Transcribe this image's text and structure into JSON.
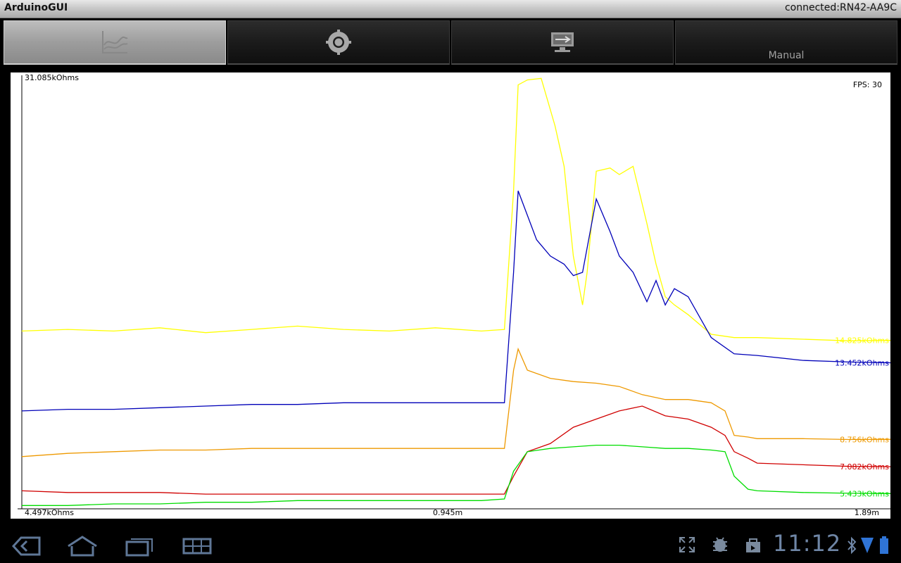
{
  "titlebar": {
    "app_title": "ArduinoGUI",
    "connection": "connected:RN42-AA9C"
  },
  "tabs": [
    {
      "name": "graph",
      "icon": "graph-icon",
      "label": "",
      "active": true
    },
    {
      "name": "settings",
      "icon": "gear-icon",
      "label": "",
      "active": false
    },
    {
      "name": "connection",
      "icon": "connection-icon",
      "label": "",
      "active": false
    },
    {
      "name": "manual",
      "icon": "",
      "label": "Manual",
      "active": false
    }
  ],
  "plot": {
    "y_max_label": "31.085kOhms",
    "y_min_label": "4.497kOhms",
    "fps_label": "FPS: 30",
    "x_mid_label": "0.945m",
    "x_end_label": "1.89m"
  },
  "chart_data": {
    "type": "line",
    "x_unit": "m",
    "x_range": [
      0,
      1.89
    ],
    "y_unit": "kOhms",
    "y_range": [
      4.497,
      31.085
    ],
    "grid": false,
    "series": [
      {
        "color": "#ffff00",
        "current_label": "14.825kOhms",
        "x": [
          0,
          0.1,
          0.2,
          0.3,
          0.4,
          0.5,
          0.6,
          0.7,
          0.8,
          0.9,
          1.0,
          1.05,
          1.07,
          1.08,
          1.1,
          1.13,
          1.16,
          1.18,
          1.2,
          1.22,
          1.23,
          1.25,
          1.28,
          1.3,
          1.33,
          1.36,
          1.38,
          1.4,
          1.42,
          1.45,
          1.5,
          1.55,
          1.6,
          1.7,
          1.8,
          1.89
        ],
        "y": [
          15.4,
          15.5,
          15.4,
          15.6,
          15.3,
          15.5,
          15.7,
          15.5,
          15.4,
          15.6,
          15.4,
          15.5,
          24.0,
          30.5,
          30.8,
          30.9,
          28.0,
          25.5,
          20.0,
          17.0,
          19.0,
          25.2,
          25.4,
          25.0,
          25.5,
          22.0,
          19.5,
          17.5,
          17.0,
          16.4,
          15.2,
          15.0,
          15.0,
          14.9,
          14.8,
          14.825
        ]
      },
      {
        "color": "#0000b8",
        "current_label": "13.452kOhms",
        "x": [
          0,
          0.1,
          0.2,
          0.3,
          0.4,
          0.5,
          0.6,
          0.7,
          0.8,
          0.9,
          1.0,
          1.05,
          1.07,
          1.08,
          1.1,
          1.12,
          1.15,
          1.18,
          1.2,
          1.22,
          1.23,
          1.25,
          1.28,
          1.3,
          1.33,
          1.36,
          1.38,
          1.4,
          1.42,
          1.45,
          1.5,
          1.55,
          1.6,
          1.7,
          1.8,
          1.89
        ],
        "y": [
          10.5,
          10.6,
          10.6,
          10.7,
          10.8,
          10.9,
          10.9,
          11.0,
          11.0,
          11.0,
          11.0,
          11.0,
          19.0,
          24.0,
          22.5,
          21.0,
          20.0,
          19.5,
          18.8,
          19.0,
          20.5,
          23.5,
          21.5,
          20.0,
          19.0,
          17.2,
          18.5,
          17.0,
          18.0,
          17.5,
          15.0,
          14.0,
          13.9,
          13.6,
          13.5,
          13.452
        ]
      },
      {
        "color": "#ee9900",
        "current_label": "8.756kOhms",
        "x": [
          0,
          0.1,
          0.2,
          0.3,
          0.4,
          0.5,
          0.6,
          0.7,
          0.8,
          0.9,
          1.0,
          1.05,
          1.07,
          1.08,
          1.1,
          1.15,
          1.2,
          1.25,
          1.3,
          1.35,
          1.4,
          1.45,
          1.5,
          1.53,
          1.55,
          1.58,
          1.6,
          1.7,
          1.8,
          1.89
        ],
        "y": [
          7.7,
          7.9,
          8.0,
          8.1,
          8.1,
          8.2,
          8.2,
          8.2,
          8.2,
          8.2,
          8.2,
          8.2,
          13.0,
          14.3,
          13.0,
          12.5,
          12.3,
          12.2,
          12.0,
          11.5,
          11.2,
          11.2,
          11.0,
          10.5,
          9.0,
          8.9,
          8.8,
          8.8,
          8.75,
          8.756
        ]
      },
      {
        "color": "#d00000",
        "current_label": "7.082kOhms",
        "x": [
          0,
          0.1,
          0.2,
          0.3,
          0.4,
          0.5,
          0.6,
          0.7,
          0.8,
          0.9,
          1.0,
          1.05,
          1.07,
          1.1,
          1.15,
          1.2,
          1.25,
          1.3,
          1.35,
          1.4,
          1.45,
          1.5,
          1.53,
          1.55,
          1.58,
          1.6,
          1.7,
          1.8,
          1.89
        ],
        "y": [
          5.6,
          5.5,
          5.5,
          5.5,
          5.4,
          5.4,
          5.4,
          5.4,
          5.4,
          5.4,
          5.4,
          5.4,
          6.5,
          8.0,
          8.5,
          9.5,
          10.0,
          10.5,
          10.8,
          10.2,
          10.0,
          9.5,
          9.0,
          8.0,
          7.6,
          7.3,
          7.2,
          7.1,
          7.082
        ]
      },
      {
        "color": "#00dd00",
        "current_label": "5.433kOhms",
        "x": [
          0,
          0.1,
          0.2,
          0.3,
          0.4,
          0.5,
          0.6,
          0.7,
          0.8,
          0.9,
          1.0,
          1.05,
          1.07,
          1.1,
          1.15,
          1.2,
          1.25,
          1.3,
          1.35,
          1.4,
          1.45,
          1.5,
          1.53,
          1.55,
          1.58,
          1.6,
          1.7,
          1.8,
          1.89
        ],
        "y": [
          4.7,
          4.7,
          4.8,
          4.8,
          4.9,
          4.9,
          5.0,
          5.0,
          5.0,
          5.0,
          5.0,
          5.1,
          6.8,
          8.0,
          8.2,
          8.3,
          8.4,
          8.4,
          8.3,
          8.2,
          8.2,
          8.1,
          8.0,
          6.5,
          5.7,
          5.6,
          5.5,
          5.45,
          5.433
        ]
      }
    ]
  },
  "navbar": {
    "clock": "11:12",
    "icons": [
      "back-icon",
      "home-icon",
      "recent-apps-icon",
      "menu-grid-icon",
      "fullscreen-icon",
      "usb-debug-icon",
      "store-icon",
      "bluetooth-icon",
      "wifi-signal-icon",
      "battery-icon"
    ]
  }
}
